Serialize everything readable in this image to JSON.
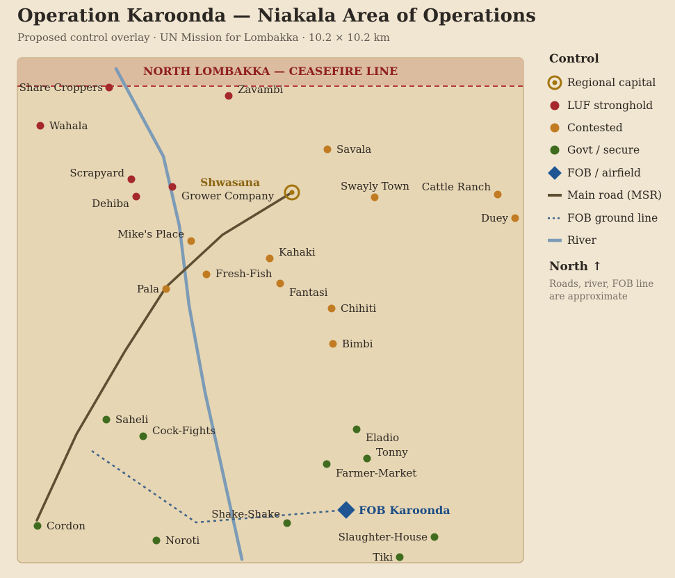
{
  "header": {
    "title": "Operation Karoonda — Niakala Area of Operations",
    "subtitle": "Proposed control overlay · UN Mission for Lombakka · 10.2 × 10.2 km"
  },
  "map": {
    "ceasefire_label": "NORTH LOMBAKKA — CEASEFIRE LINE",
    "capital": {
      "name": "Shwasana"
    },
    "fob": {
      "name": "FOB Karoonda"
    },
    "settlements": [
      {
        "name": "Share Croppers",
        "status": "luf"
      },
      {
        "name": "Zavambi",
        "status": "luf"
      },
      {
        "name": "Wahala",
        "status": "luf"
      },
      {
        "name": "Scrapyard",
        "status": "luf"
      },
      {
        "name": "Dehiba",
        "status": "luf"
      },
      {
        "name": "Grower Company",
        "status": "luf"
      },
      {
        "name": "Savala",
        "status": "contested"
      },
      {
        "name": "Swayly Town",
        "status": "contested"
      },
      {
        "name": "Cattle Ranch",
        "status": "contested"
      },
      {
        "name": "Duey",
        "status": "contested"
      },
      {
        "name": "Mike's Place",
        "status": "contested"
      },
      {
        "name": "Kahaki",
        "status": "contested"
      },
      {
        "name": "Fresh-Fish",
        "status": "contested"
      },
      {
        "name": "Pala",
        "status": "contested"
      },
      {
        "name": "Fantasi",
        "status": "contested"
      },
      {
        "name": "Chihiti",
        "status": "contested"
      },
      {
        "name": "Bimbi",
        "status": "contested"
      },
      {
        "name": "Saheli",
        "status": "govt"
      },
      {
        "name": "Cock-Fights",
        "status": "govt"
      },
      {
        "name": "Eladio",
        "status": "govt"
      },
      {
        "name": "Tonny",
        "status": "govt"
      },
      {
        "name": "Farmer-Market",
        "status": "govt"
      },
      {
        "name": "Cordon",
        "status": "govt"
      },
      {
        "name": "Shake-Shake",
        "status": "govt"
      },
      {
        "name": "Noroti",
        "status": "govt"
      },
      {
        "name": "Slaughter-House",
        "status": "govt"
      },
      {
        "name": "Tiki",
        "status": "govt"
      }
    ]
  },
  "legend": {
    "title": "Control",
    "items": [
      {
        "label": "Regional capital",
        "icon": "capital-ring-icon"
      },
      {
        "label": "LUF stronghold",
        "icon": "red-dot-icon"
      },
      {
        "label": "Contested",
        "icon": "orange-dot-icon"
      },
      {
        "label": "Govt / secure",
        "icon": "green-dot-icon"
      },
      {
        "label": "FOB / airfield",
        "icon": "blue-diamond-icon"
      },
      {
        "label": "Main road (MSR)",
        "icon": "road-line-icon"
      },
      {
        "label": "FOB ground line",
        "icon": "dotted-line-icon"
      },
      {
        "label": "River",
        "icon": "river-line-icon"
      }
    ],
    "north_label": "North ↑",
    "note": "Roads, river, FOB line are approximate"
  },
  "colors": {
    "luf": "#a5282c",
    "contested": "#c17b22",
    "govt": "#3f6c1e",
    "capital": "#a3730d",
    "fob": "#1f5593",
    "road": "#5e4f33",
    "river": "#7c9bb6",
    "fob_line": "#3f6388",
    "ceasefire": "#b3383a"
  }
}
